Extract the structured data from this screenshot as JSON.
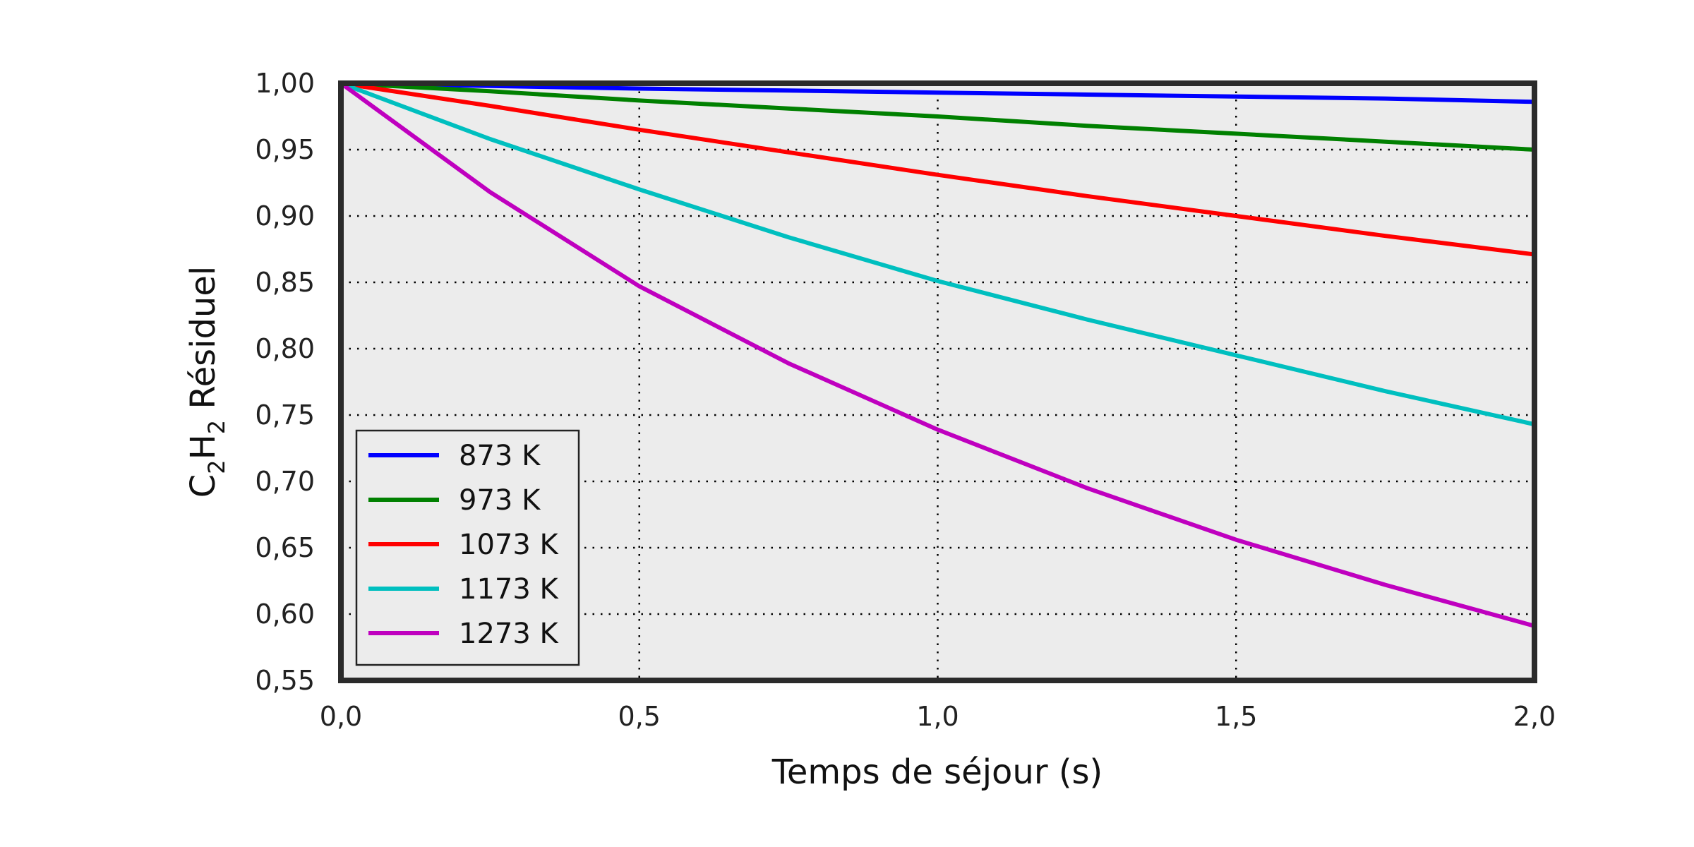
{
  "chart_data": {
    "type": "line",
    "title": "",
    "xlabel": "Temps de séjour (s)",
    "ylabel": {
      "species": "C",
      "sub1": "2",
      "species2": "H",
      "sub2": "2",
      "suffix": " Résiduel"
    },
    "xlim": [
      0,
      2.0
    ],
    "ylim": [
      0.55,
      1.0
    ],
    "xticks": [
      {
        "value": 0.0,
        "label": "0,0"
      },
      {
        "value": 0.5,
        "label": "0,5"
      },
      {
        "value": 1.0,
        "label": "1,0"
      },
      {
        "value": 1.5,
        "label": "1,5"
      },
      {
        "value": 2.0,
        "label": "2,0"
      }
    ],
    "yticks": [
      {
        "value": 0.55,
        "label": "0,55"
      },
      {
        "value": 0.6,
        "label": "0,60"
      },
      {
        "value": 0.65,
        "label": "0,65"
      },
      {
        "value": 0.7,
        "label": "0,70"
      },
      {
        "value": 0.75,
        "label": "0,75"
      },
      {
        "value": 0.8,
        "label": "0,80"
      },
      {
        "value": 0.85,
        "label": "0,85"
      },
      {
        "value": 0.9,
        "label": "0,90"
      },
      {
        "value": 0.95,
        "label": "0,95"
      },
      {
        "value": 1.0,
        "label": "1,00"
      }
    ],
    "grid": true,
    "legend_position": "lower-left",
    "x": [
      0.0,
      0.25,
      0.5,
      0.75,
      1.0,
      1.25,
      1.5,
      1.75,
      2.0
    ],
    "series": [
      {
        "name": "873 K",
        "color": "#0000ff",
        "values": [
          1.0,
          0.998,
          0.996,
          0.9945,
          0.993,
          0.9915,
          0.99,
          0.9885,
          0.986
        ]
      },
      {
        "name": "973 K",
        "color": "#008000",
        "values": [
          1.0,
          0.994,
          0.987,
          0.981,
          0.975,
          0.968,
          0.962,
          0.956,
          0.95
        ]
      },
      {
        "name": "1073 K",
        "color": "#ff0000",
        "values": [
          1.0,
          0.983,
          0.965,
          0.948,
          0.931,
          0.915,
          0.9,
          0.885,
          0.871
        ]
      },
      {
        "name": "1173 K",
        "color": "#00bfbf",
        "values": [
          1.0,
          0.958,
          0.92,
          0.884,
          0.851,
          0.822,
          0.795,
          0.768,
          0.743
        ]
      },
      {
        "name": "1273 K",
        "color": "#bf00bf",
        "values": [
          1.0,
          0.918,
          0.847,
          0.789,
          0.739,
          0.695,
          0.656,
          0.622,
          0.591
        ]
      }
    ]
  }
}
